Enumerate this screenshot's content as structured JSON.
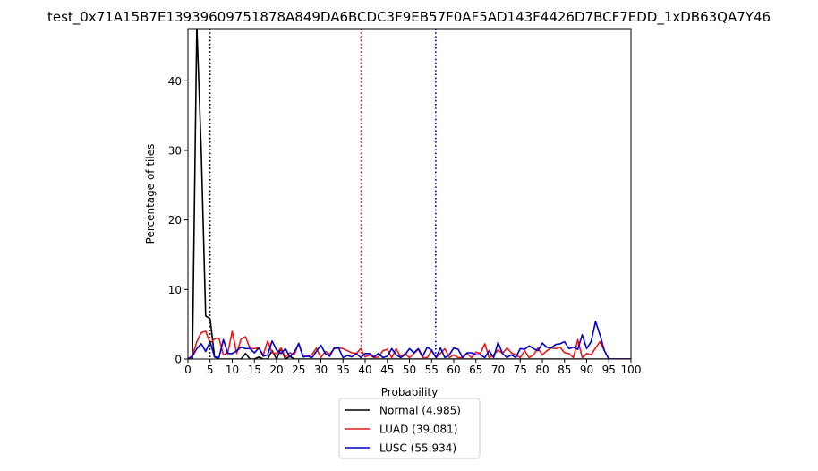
{
  "chart_data": {
    "type": "line",
    "title": "test_0x71A15B7E13939609751878A849DA6BCDC3F9EB57F0AF5AD143F4426D7BCF7EDD_1xDB63QA7Y46",
    "xlabel": "Probability",
    "ylabel": "Percentage of tiles",
    "xlim": [
      0,
      100
    ],
    "ylim": [
      0,
      47.5
    ],
    "xticks": [
      0,
      5,
      10,
      15,
      20,
      25,
      30,
      35,
      40,
      45,
      50,
      55,
      60,
      65,
      70,
      75,
      80,
      85,
      90,
      95,
      100
    ],
    "xtick_labels": [
      "0",
      "5",
      "10",
      "15",
      "20",
      "25",
      "30",
      "35",
      "40",
      "45",
      "50",
      "55",
      "60",
      "65",
      "70",
      "75",
      "80",
      "85",
      "90",
      "95",
      "100"
    ],
    "yticks": [
      0,
      10,
      20,
      30,
      40
    ],
    "ytick_labels": [
      "0",
      "10",
      "20",
      "30",
      "40"
    ],
    "grid": false,
    "legend_position": "below plot",
    "series": [
      {
        "name": "Normal (4.985)",
        "color": "#000000",
        "x": [
          0,
          1,
          2,
          3,
          4,
          5,
          6,
          7,
          8,
          9,
          10,
          11,
          12,
          13,
          14,
          15,
          16,
          17,
          18,
          19,
          20,
          21,
          22,
          23,
          24,
          25,
          26,
          30,
          40,
          50,
          60,
          70,
          80,
          90,
          95,
          100
        ],
        "values": [
          0,
          0,
          48,
          30,
          6.2,
          5.8,
          0.3,
          0,
          0,
          0,
          0,
          0,
          0,
          0.8,
          0,
          0,
          0.3,
          0,
          0,
          1.2,
          0,
          1.5,
          0,
          0.4,
          0,
          0,
          0,
          0,
          0,
          0,
          0,
          0,
          0,
          0,
          0,
          0
        ]
      },
      {
        "name": "LUAD (39.081)",
        "color": "#e41a1c",
        "x": [
          0,
          1,
          2,
          3,
          4,
          5,
          6,
          7,
          8,
          9,
          10,
          11,
          12,
          13,
          14,
          15,
          16,
          17,
          18,
          19,
          20,
          21,
          22,
          23,
          24,
          25,
          26,
          27,
          28,
          29,
          30,
          31,
          32,
          33,
          34,
          35,
          36,
          37,
          38,
          39,
          40,
          41,
          42,
          43,
          44,
          45,
          46,
          47,
          48,
          49,
          50,
          51,
          52,
          53,
          54,
          55,
          56,
          57,
          58,
          59,
          60,
          61,
          62,
          63,
          64,
          65,
          66,
          67,
          68,
          69,
          70,
          71,
          72,
          73,
          74,
          75,
          76,
          77,
          78,
          79,
          80,
          81,
          82,
          83,
          84,
          85,
          86,
          87,
          88,
          89,
          90,
          91,
          92,
          93,
          94,
          95,
          100
        ],
        "values": [
          0,
          0.5,
          2.5,
          3.8,
          4,
          2.3,
          2.9,
          3,
          0.6,
          0.9,
          4,
          0.8,
          2.9,
          3.2,
          1.5,
          1.5,
          1.6,
          0.6,
          2.6,
          0.9,
          0.8,
          1.6,
          0.3,
          0.9,
          0.6,
          2.3,
          0.4,
          0.4,
          0.6,
          1.6,
          0.2,
          1.1,
          0.7,
          1.5,
          1.6,
          1.5,
          1.2,
          0.9,
          0.8,
          1.5,
          0.3,
          0.6,
          0.2,
          0.3,
          1.2,
          1.4,
          0.2,
          1.5,
          0.3,
          0.8,
          0.2,
          0.8,
          1.4,
          0.2,
          0.2,
          1.2,
          0.2,
          0.8,
          1.5,
          0.2,
          0.6,
          0.2,
          0.2,
          0.8,
          0.2,
          1,
          0.8,
          2.2,
          0.2,
          0.6,
          1.3,
          0.8,
          1.6,
          0.9,
          0.6,
          0.2,
          1.2,
          0.2,
          0.6,
          1.6,
          0.6,
          1.2,
          1.6,
          1.5,
          1.7,
          0.9,
          0.8,
          0.2,
          2.8,
          0.2,
          0.8,
          0.6,
          1.6,
          2.5,
          1.2,
          0,
          0
        ]
      },
      {
        "name": "LUSC (55.934)",
        "color": "#0000cc",
        "x": [
          0,
          1,
          2,
          3,
          4,
          5,
          6,
          7,
          8,
          9,
          10,
          11,
          12,
          13,
          14,
          15,
          16,
          17,
          18,
          19,
          20,
          21,
          22,
          23,
          24,
          25,
          26,
          27,
          28,
          29,
          30,
          31,
          32,
          33,
          34,
          35,
          36,
          37,
          38,
          39,
          40,
          41,
          42,
          43,
          44,
          45,
          46,
          47,
          48,
          49,
          50,
          51,
          52,
          53,
          54,
          55,
          56,
          57,
          58,
          59,
          60,
          61,
          62,
          63,
          64,
          65,
          66,
          67,
          68,
          69,
          70,
          71,
          72,
          73,
          74,
          75,
          76,
          77,
          78,
          79,
          80,
          81,
          82,
          83,
          84,
          85,
          86,
          87,
          88,
          89,
          90,
          91,
          92,
          93,
          94,
          95,
          100
        ],
        "values": [
          0,
          0.4,
          1.5,
          2.2,
          1.1,
          2.5,
          0.3,
          0.2,
          2.8,
          0.8,
          0.8,
          1.2,
          1.7,
          1.5,
          1.5,
          0.9,
          1.6,
          0.4,
          0.6,
          2.6,
          1.3,
          0.8,
          1.5,
          0.3,
          1,
          2.2,
          0.3,
          0.4,
          0.2,
          1.1,
          2,
          0.8,
          0.4,
          1.6,
          1.6,
          0.2,
          0.5,
          0.3,
          0.8,
          0.2,
          0.8,
          0.8,
          0.3,
          0.8,
          0.2,
          0.4,
          1.5,
          0.6,
          0.2,
          0.6,
          1.5,
          0.9,
          1.5,
          0.4,
          1.7,
          1.3,
          0.2,
          1.6,
          0.2,
          0.6,
          1.6,
          1.4,
          0.2,
          0.9,
          0.9,
          0.6,
          0.6,
          0.2,
          1.2,
          0.2,
          2.4,
          0.8,
          0.2,
          0.6,
          0.2,
          1.5,
          1.4,
          1.9,
          1.5,
          1.2,
          2.3,
          1.7,
          1.6,
          2.1,
          2.2,
          2.5,
          1.5,
          1.7,
          1.4,
          3.5,
          1.5,
          2.5,
          5.4,
          3.5,
          1.2,
          0,
          0
        ]
      }
    ],
    "markers": [
      {
        "series": "Normal (4.985)",
        "x": 4.985,
        "color": "#000000",
        "style": "dotted"
      },
      {
        "series": "LUAD (39.081)",
        "x": 39.081,
        "color": "#e41a1c",
        "style": "dotted"
      },
      {
        "series": "LUSC (55.934)",
        "x": 55.934,
        "color": "#0000cc",
        "style": "dotted"
      }
    ]
  }
}
